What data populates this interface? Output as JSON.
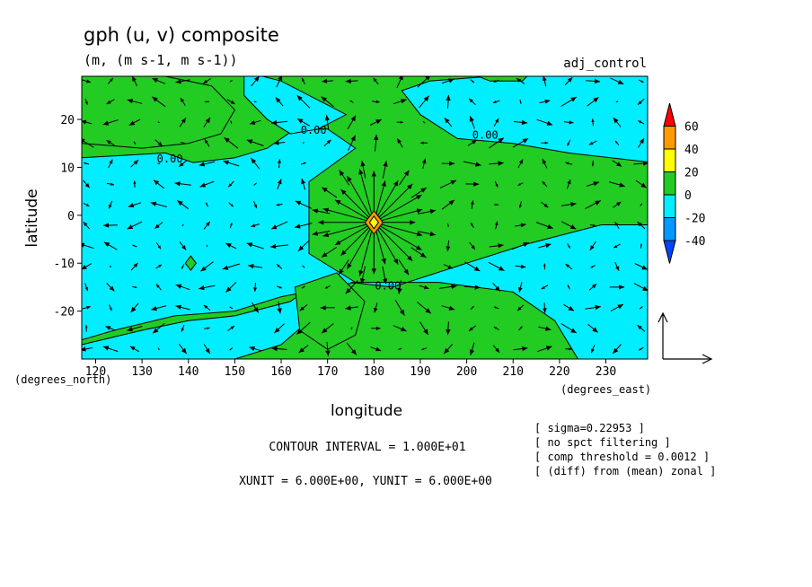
{
  "chart_data": {
    "type": "contour",
    "title": "gph (u, v) composite",
    "subtitle": "(m, (m s-1, m s-1))",
    "run_label": "adj_control",
    "xlabel": "longitude",
    "ylabel": "latitude",
    "x_unit_label": "(degrees_east)",
    "y_unit_label": "(degrees_north)",
    "xlim": [
      117,
      239
    ],
    "ylim": [
      -30,
      29
    ],
    "x_ticks": [
      120,
      130,
      140,
      150,
      160,
      170,
      180,
      190,
      200,
      210,
      220,
      230
    ],
    "y_ticks": [
      20,
      10,
      0,
      -10,
      -20
    ],
    "colorbar": {
      "levels": [
        60,
        40,
        20,
        0,
        -20,
        -40
      ],
      "level_labels": [
        "60",
        "40",
        "20",
        "0",
        "-20",
        "-40"
      ],
      "colors": [
        "#ff0000",
        "#ff9900",
        "#ffff00",
        "#22cc22",
        "#00eeff",
        "#0099ff",
        "#0044ff"
      ]
    },
    "contour_labels": [
      {
        "text": "0.00",
        "lon": 167,
        "lat": 17
      },
      {
        "text": "0.00",
        "lon": 204,
        "lat": 16
      },
      {
        "text": "0.00",
        "lon": 136,
        "lat": 11
      },
      {
        "text": "0.00",
        "lon": 183,
        "lat": -15.5
      }
    ],
    "regions": [
      {
        "fill": "positive",
        "color": "#22cc22",
        "outline": [
          [
            117,
            29
          ],
          [
            170,
            29
          ],
          [
            188,
            29
          ],
          [
            215,
            29
          ],
          [
            190,
            24
          ],
          [
            182,
            14
          ],
          [
            174,
            9
          ],
          [
            167,
            6
          ],
          [
            166,
            -7
          ],
          [
            174,
            -14
          ],
          [
            184,
            -15
          ],
          [
            200,
            -10
          ],
          [
            213,
            -6
          ],
          [
            229,
            -2
          ],
          [
            239,
            -2
          ],
          [
            239,
            11
          ],
          [
            215,
            13
          ],
          [
            200,
            16
          ],
          [
            190,
            21
          ],
          [
            185,
            26
          ],
          [
            192,
            28
          ],
          [
            205,
            29
          ],
          [
            239,
            29
          ],
          [
            239,
            -30
          ],
          [
            225,
            -30
          ],
          [
            218,
            -22
          ],
          [
            210,
            -16
          ],
          [
            193,
            -14
          ],
          [
            177,
            -13
          ],
          [
            169,
            -12
          ],
          [
            161,
            -18
          ],
          [
            150,
            -20
          ],
          [
            136,
            -20
          ],
          [
            122,
            -23
          ],
          [
            117,
            -25
          ],
          [
            117,
            -30
          ],
          [
            117,
            29
          ]
        ]
      },
      {
        "fill": "negative",
        "color": "#00eeff",
        "outline": [
          [
            117,
            12
          ],
          [
            135,
            13
          ],
          [
            140,
            11
          ],
          [
            150,
            12
          ],
          [
            157,
            13
          ],
          [
            162,
            18
          ],
          [
            170,
            18
          ],
          [
            176,
            14
          ],
          [
            166,
            7
          ],
          [
            167,
            -8
          ],
          [
            176,
            -14
          ],
          [
            160,
            -17
          ],
          [
            150,
            -20
          ],
          [
            137,
            -21
          ],
          [
            124,
            -24
          ],
          [
            117,
            -26
          ],
          [
            117,
            12
          ]
        ]
      }
    ],
    "center_marker": {
      "lon": 180,
      "lat": -1.5
    },
    "small_feature": {
      "lon": 140.5,
      "lat": -10
    }
  },
  "annotations": {
    "contour_interval": "CONTOUR INTERVAL = 1.000E+01",
    "units": "XUNIT = 6.000E+00, YUNIT = 6.000E+00",
    "info": [
      "[ sigma=0.22953 ]",
      "[ no spct filtering ]",
      "[ comp threshold = 0.0012 ]",
      "[ (diff) from (mean) zonal ]"
    ]
  },
  "colors": {
    "positive": "#22cc22",
    "negative": "#00eeff",
    "arrows": "#000000"
  }
}
